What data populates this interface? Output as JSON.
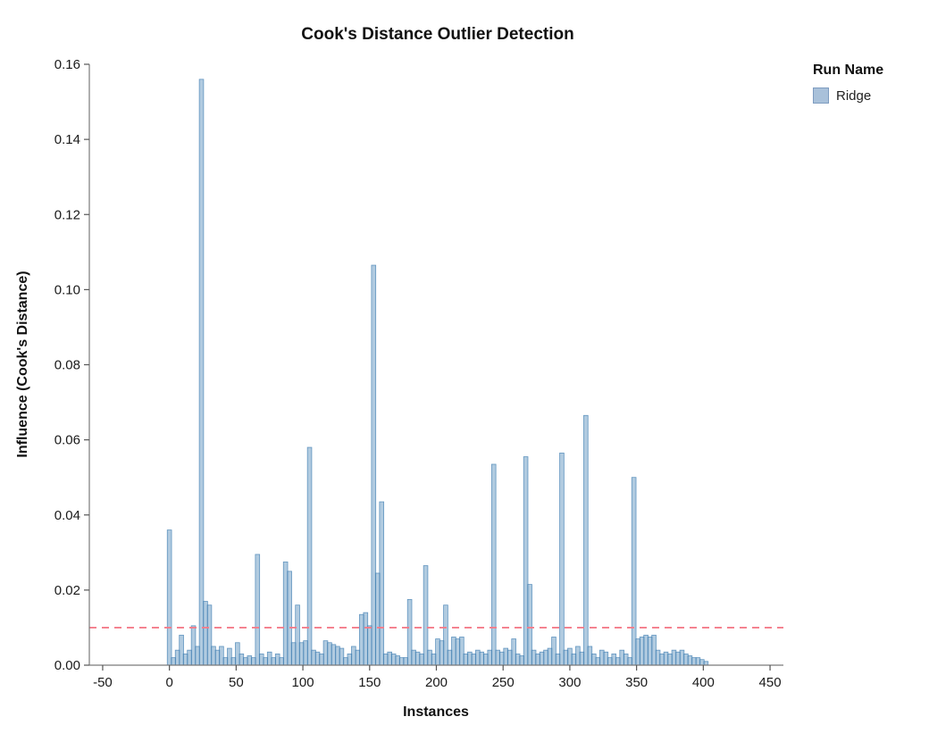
{
  "title": "Cook's Distance Outlier Detection",
  "legend": {
    "title": "Run Name",
    "items": [
      {
        "label": "Ridge",
        "color": "#a9c1da",
        "border": "#7e9cc0"
      }
    ]
  },
  "chart_data": {
    "type": "bar",
    "title": "Cook's Distance Outlier Detection",
    "xlabel": "Instances",
    "ylabel": "Influence (Cook's Distance)",
    "xlim": [
      -60,
      460
    ],
    "ylim": [
      0,
      0.16
    ],
    "x_ticks": [
      -50,
      0,
      50,
      100,
      150,
      200,
      250,
      300,
      350,
      400,
      450
    ],
    "y_ticks": [
      0,
      0.02,
      0.04,
      0.06,
      0.08,
      0.1,
      0.12,
      0.14,
      0.16
    ],
    "grid": false,
    "legend_position": "right",
    "threshold": {
      "y": 0.01,
      "color": "#f47c8a",
      "style": "dashed"
    },
    "series": [
      {
        "name": "Ridge",
        "color": "#4682b4",
        "fill_opacity": 0.42,
        "points": [
          [
            0,
            0.036
          ],
          [
            3,
            0.002
          ],
          [
            6,
            0.004
          ],
          [
            9,
            0.008
          ],
          [
            12,
            0.003
          ],
          [
            15,
            0.004
          ],
          [
            18,
            0.0105
          ],
          [
            21,
            0.005
          ],
          [
            24,
            0.156
          ],
          [
            27,
            0.017
          ],
          [
            30,
            0.016
          ],
          [
            33,
            0.005
          ],
          [
            36,
            0.004
          ],
          [
            39,
            0.005
          ],
          [
            42,
            0.002
          ],
          [
            45,
            0.0045
          ],
          [
            48,
            0.002
          ],
          [
            51,
            0.006
          ],
          [
            54,
            0.003
          ],
          [
            57,
            0.002
          ],
          [
            60,
            0.0025
          ],
          [
            63,
            0.002
          ],
          [
            66,
            0.0295
          ],
          [
            69,
            0.003
          ],
          [
            72,
            0.002
          ],
          [
            75,
            0.0035
          ],
          [
            78,
            0.002
          ],
          [
            81,
            0.003
          ],
          [
            84,
            0.002
          ],
          [
            87,
            0.0275
          ],
          [
            90,
            0.025
          ],
          [
            93,
            0.006
          ],
          [
            96,
            0.016
          ],
          [
            99,
            0.006
          ],
          [
            102,
            0.0065
          ],
          [
            105,
            0.058
          ],
          [
            108,
            0.004
          ],
          [
            111,
            0.0035
          ],
          [
            114,
            0.003
          ],
          [
            117,
            0.0065
          ],
          [
            120,
            0.006
          ],
          [
            123,
            0.0055
          ],
          [
            126,
            0.005
          ],
          [
            129,
            0.0045
          ],
          [
            132,
            0.002
          ],
          [
            135,
            0.003
          ],
          [
            138,
            0.005
          ],
          [
            141,
            0.004
          ],
          [
            144,
            0.0135
          ],
          [
            147,
            0.014
          ],
          [
            150,
            0.0105
          ],
          [
            153,
            0.1065
          ],
          [
            156,
            0.0245
          ],
          [
            159,
            0.0435
          ],
          [
            162,
            0.003
          ],
          [
            165,
            0.0035
          ],
          [
            168,
            0.003
          ],
          [
            171,
            0.0025
          ],
          [
            174,
            0.002
          ],
          [
            177,
            0.002
          ],
          [
            180,
            0.0175
          ],
          [
            183,
            0.004
          ],
          [
            186,
            0.0035
          ],
          [
            189,
            0.003
          ],
          [
            192,
            0.0265
          ],
          [
            195,
            0.004
          ],
          [
            198,
            0.003
          ],
          [
            201,
            0.007
          ],
          [
            204,
            0.0065
          ],
          [
            207,
            0.016
          ],
          [
            210,
            0.004
          ],
          [
            213,
            0.0075
          ],
          [
            216,
            0.007
          ],
          [
            219,
            0.0075
          ],
          [
            222,
            0.003
          ],
          [
            225,
            0.0035
          ],
          [
            228,
            0.003
          ],
          [
            231,
            0.004
          ],
          [
            234,
            0.0035
          ],
          [
            237,
            0.003
          ],
          [
            240,
            0.004
          ],
          [
            243,
            0.0535
          ],
          [
            246,
            0.004
          ],
          [
            249,
            0.0035
          ],
          [
            252,
            0.0045
          ],
          [
            255,
            0.004
          ],
          [
            258,
            0.007
          ],
          [
            261,
            0.003
          ],
          [
            264,
            0.0025
          ],
          [
            267,
            0.0555
          ],
          [
            270,
            0.0215
          ],
          [
            273,
            0.004
          ],
          [
            276,
            0.003
          ],
          [
            279,
            0.0035
          ],
          [
            282,
            0.004
          ],
          [
            285,
            0.0045
          ],
          [
            288,
            0.0075
          ],
          [
            291,
            0.003
          ],
          [
            294,
            0.0565
          ],
          [
            297,
            0.004
          ],
          [
            300,
            0.0045
          ],
          [
            303,
            0.003
          ],
          [
            306,
            0.005
          ],
          [
            309,
            0.0035
          ],
          [
            312,
            0.0665
          ],
          [
            315,
            0.005
          ],
          [
            318,
            0.003
          ],
          [
            321,
            0.002
          ],
          [
            324,
            0.004
          ],
          [
            327,
            0.0035
          ],
          [
            330,
            0.002
          ],
          [
            333,
            0.003
          ],
          [
            336,
            0.002
          ],
          [
            339,
            0.004
          ],
          [
            342,
            0.003
          ],
          [
            345,
            0.002
          ],
          [
            348,
            0.05
          ],
          [
            351,
            0.007
          ],
          [
            354,
            0.0075
          ],
          [
            357,
            0.008
          ],
          [
            360,
            0.0075
          ],
          [
            363,
            0.008
          ],
          [
            366,
            0.004
          ],
          [
            369,
            0.003
          ],
          [
            372,
            0.0035
          ],
          [
            375,
            0.003
          ],
          [
            378,
            0.004
          ],
          [
            381,
            0.0035
          ],
          [
            384,
            0.004
          ],
          [
            387,
            0.003
          ],
          [
            390,
            0.0025
          ],
          [
            393,
            0.002
          ],
          [
            396,
            0.002
          ],
          [
            399,
            0.0015
          ],
          [
            402,
            0.001
          ]
        ]
      }
    ]
  }
}
